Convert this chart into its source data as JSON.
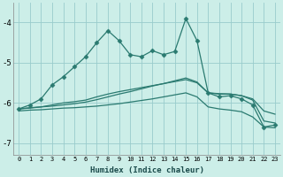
{
  "xlabel": "Humidex (Indice chaleur)",
  "bg_color": "#cceee8",
  "grid_color": "#99cccc",
  "line_color": "#2a7a70",
  "xlim": [
    -0.5,
    23.5
  ],
  "ylim": [
    -7.3,
    -3.5
  ],
  "yticks": [
    -7,
    -6,
    -5,
    -4
  ],
  "xticks": [
    0,
    1,
    2,
    3,
    4,
    5,
    6,
    7,
    8,
    9,
    10,
    11,
    12,
    13,
    14,
    15,
    16,
    17,
    18,
    19,
    20,
    21,
    22,
    23
  ],
  "series": [
    {
      "x": [
        0,
        1,
        2,
        3,
        4,
        5,
        6,
        7,
        8,
        9,
        10,
        11,
        12,
        13,
        14,
        15,
        16,
        17,
        18,
        19,
        20,
        21,
        22,
        23
      ],
      "y": [
        -6.15,
        -6.05,
        -5.9,
        -5.55,
        -5.35,
        -5.1,
        -4.85,
        -4.5,
        -4.2,
        -4.45,
        -4.8,
        -4.85,
        -4.7,
        -4.8,
        -4.72,
        -3.9,
        -4.45,
        -5.75,
        -5.85,
        -5.82,
        -5.9,
        -6.05,
        -6.6,
        -6.55
      ],
      "marker": "D",
      "markersize": 2.5,
      "lw": 0.9
    },
    {
      "x": [
        0,
        1,
        2,
        3,
        4,
        5,
        6,
        7,
        8,
        9,
        10,
        11,
        12,
        13,
        14,
        15,
        16,
        17,
        18,
        19,
        20,
        21,
        22,
        23
      ],
      "y": [
        -6.15,
        -6.13,
        -6.1,
        -6.05,
        -6.0,
        -5.97,
        -5.93,
        -5.85,
        -5.78,
        -5.72,
        -5.67,
        -5.62,
        -5.57,
        -5.52,
        -5.47,
        -5.42,
        -5.5,
        -5.75,
        -5.77,
        -5.78,
        -5.82,
        -5.9,
        -6.2,
        -6.28
      ],
      "marker": null,
      "markersize": 0,
      "lw": 0.9
    },
    {
      "x": [
        0,
        1,
        2,
        3,
        4,
        5,
        6,
        7,
        8,
        9,
        10,
        11,
        12,
        13,
        14,
        15,
        16,
        17,
        18,
        19,
        20,
        21,
        22,
        23
      ],
      "y": [
        -6.15,
        -6.12,
        -6.1,
        -6.08,
        -6.05,
        -6.02,
        -5.98,
        -5.92,
        -5.85,
        -5.78,
        -5.72,
        -5.65,
        -5.58,
        -5.52,
        -5.45,
        -5.38,
        -5.48,
        -5.75,
        -5.78,
        -5.78,
        -5.82,
        -5.93,
        -6.45,
        -6.5
      ],
      "marker": null,
      "markersize": 0,
      "lw": 0.9
    },
    {
      "x": [
        0,
        1,
        2,
        3,
        4,
        5,
        6,
        7,
        8,
        9,
        10,
        11,
        12,
        13,
        14,
        15,
        16,
        17,
        18,
        19,
        20,
        21,
        22,
        23
      ],
      "y": [
        -6.2,
        -6.18,
        -6.17,
        -6.15,
        -6.13,
        -6.12,
        -6.1,
        -6.08,
        -6.05,
        -6.02,
        -5.98,
        -5.94,
        -5.9,
        -5.85,
        -5.8,
        -5.75,
        -5.85,
        -6.1,
        -6.15,
        -6.18,
        -6.22,
        -6.35,
        -6.6,
        -6.62
      ],
      "marker": null,
      "markersize": 0,
      "lw": 0.9
    }
  ]
}
